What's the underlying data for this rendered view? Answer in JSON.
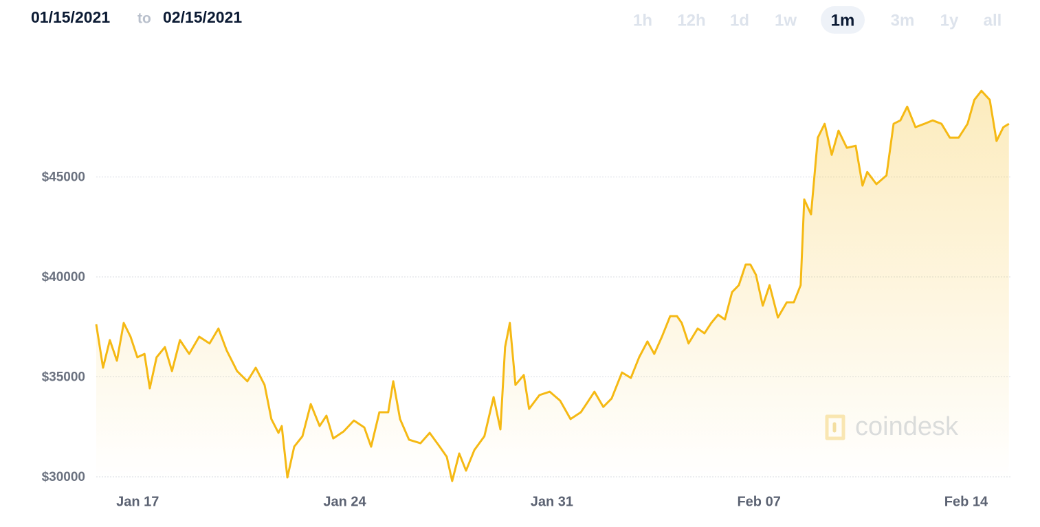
{
  "header": {
    "from": "01/15/2021",
    "separator": "to",
    "to": "02/15/2021",
    "ranges": [
      "1h",
      "12h",
      "1d",
      "1w",
      "1m",
      "3m",
      "1y",
      "all"
    ],
    "active": "1m"
  },
  "watermark": "coindesk",
  "chart_data": {
    "type": "area",
    "color": "#f5b914",
    "grid": true,
    "x": [
      0.6,
      0.83,
      1.06,
      1.3,
      1.53,
      1.76,
      1.99,
      2.23,
      2.41,
      2.64,
      2.92,
      3.16,
      3.43,
      3.74,
      4.08,
      4.43,
      4.73,
      5.01,
      5.36,
      5.71,
      5.99,
      6.29,
      6.52,
      6.76,
      6.87,
      7.06,
      7.29,
      7.57,
      7.85,
      8.15,
      8.38,
      8.61,
      8.96,
      9.31,
      9.66,
      9.89,
      10.17,
      10.47,
      10.64,
      10.87,
      11.17,
      11.56,
      11.87,
      12.21,
      12.45,
      12.63,
      12.87,
      13.1,
      13.38,
      13.72,
      14.03,
      14.26,
      14.42,
      14.58,
      14.77,
      15.05,
      15.23,
      15.58,
      15.93,
      16.28,
      16.63,
      16.98,
      17.21,
      17.44,
      17.74,
      18.02,
      18.37,
      18.67,
      18.95,
      19.23,
      19.46,
      19.72,
      20.0,
      20.23,
      20.39,
      20.62,
      20.93,
      21.16,
      21.39,
      21.62,
      21.85,
      22.09,
      22.32,
      22.55,
      22.71,
      22.9,
      23.13,
      23.36,
      23.64,
      23.94,
      24.18,
      24.41,
      24.53,
      24.76,
      24.99,
      25.22,
      25.46,
      25.69,
      25.97,
      26.27,
      26.5,
      26.66,
      26.97,
      27.31,
      27.55,
      27.78,
      28.01,
      28.29,
      28.59,
      28.87,
      29.17,
      29.45,
      29.75,
      30.05,
      30.28,
      30.52,
      30.8,
      31.03,
      31.26,
      31.45
    ],
    "values": [
      37630,
      35460,
      36840,
      35810,
      37700,
      37010,
      35980,
      36150,
      34430,
      35980,
      36490,
      35290,
      36840,
      36150,
      37010,
      36670,
      37420,
      36320,
      35290,
      34780,
      35460,
      34600,
      32890,
      32200,
      32540,
      29970,
      31510,
      32030,
      33640,
      32540,
      33060,
      31920,
      32270,
      32820,
      32470,
      31510,
      33230,
      33230,
      34780,
      32890,
      31860,
      31680,
      32200,
      31510,
      31000,
      29790,
      31170,
      30310,
      31340,
      32030,
      33990,
      32370,
      36490,
      37700,
      34600,
      35090,
      33400,
      34090,
      34260,
      33810,
      32890,
      33230,
      33740,
      34260,
      33500,
      33920,
      35220,
      34950,
      35980,
      36770,
      36150,
      37010,
      38040,
      38040,
      37700,
      36670,
      37420,
      37180,
      37700,
      38110,
      37870,
      39240,
      39590,
      40620,
      40620,
      40100,
      38560,
      39590,
      37970,
      38730,
      38730,
      39590,
      43880,
      43130,
      46970,
      47660,
      46110,
      47320,
      46460,
      46560,
      44570,
      45250,
      44640,
      45080,
      47660,
      47830,
      48520,
      47490,
      47660,
      47830,
      47660,
      46970,
      46970,
      47660,
      48860,
      49310,
      48860,
      46800,
      47490,
      47660
    ],
    "xlim": [
      0.6,
      31.5
    ],
    "xticks": [
      {
        "value": 2,
        "label": "Jan 17"
      },
      {
        "value": 9,
        "label": "Jan 24"
      },
      {
        "value": 16,
        "label": "Jan 31"
      },
      {
        "value": 23,
        "label": "Feb 07"
      },
      {
        "value": 30,
        "label": "Feb 14"
      }
    ],
    "ylim": [
      30000,
      51000
    ],
    "yticks": [
      {
        "value": 30000,
        "label": "$30000"
      },
      {
        "value": 35000,
        "label": "$35000"
      },
      {
        "value": 40000,
        "label": "$40000"
      },
      {
        "value": 45000,
        "label": "$45000"
      }
    ]
  }
}
